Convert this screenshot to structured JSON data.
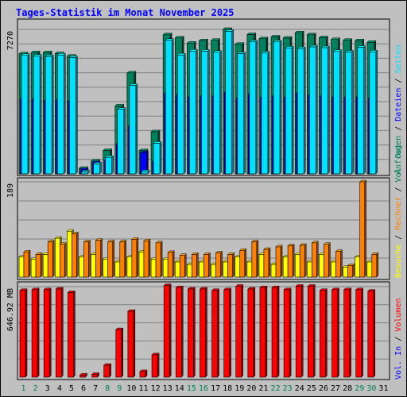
{
  "title": "Tages-Statistik im Monat November 2025",
  "colors": {
    "hits": "#00805c",
    "files": "#0000ff",
    "pages": "#00e0ff",
    "visits": "#ffff00",
    "sites": "#ff8000",
    "volume": "#ff0000",
    "kbin": "#0000ff",
    "kbout": "#00805c",
    "weekend": "#00805c",
    "weekday": "#000000"
  },
  "panels": {
    "top": {
      "max_label": "7270",
      "right_labels": [
        {
          "text": "Anfragen",
          "key": "hits"
        },
        {
          "text": "Dateien",
          "key": "files"
        },
        {
          "text": "Seiten",
          "key": "pages"
        }
      ]
    },
    "middle": {
      "max_label": "189",
      "right_labels": [
        {
          "text": "Besuche",
          "key": "visits"
        },
        {
          "text": "Rechner",
          "key": "sites"
        },
        {
          "text": "Vol. Out",
          "key": "kbout"
        }
      ]
    },
    "bottom": {
      "max_label": "646.92 MB",
      "right_labels": [
        {
          "text": "Vol. In",
          "key": "kbin"
        },
        {
          "text": "Volumen",
          "key": "volume"
        }
      ]
    }
  },
  "chart_data": {
    "type": "bar",
    "title": "Tages-Statistik im Monat November 2025",
    "x": [
      "1",
      "2",
      "3",
      "4",
      "5",
      "6",
      "7",
      "8",
      "9",
      "10",
      "11",
      "12",
      "13",
      "14",
      "15",
      "16",
      "17",
      "18",
      "19",
      "20",
      "21",
      "22",
      "23",
      "24",
      "25",
      "26",
      "27",
      "28",
      "29",
      "30",
      "31"
    ],
    "weekend_days": [
      "1",
      "2",
      "8",
      "9",
      "15",
      "16",
      "22",
      "23",
      "29",
      "30"
    ],
    "ylim_top": [
      0,
      7270
    ],
    "ylim_middle": [
      0,
      189
    ],
    "ylim_bottom_mb": [
      0,
      646.92
    ],
    "series": [
      {
        "name": "Anfragen",
        "values": [
          6040,
          6100,
          6100,
          6050,
          5920,
          280,
          650,
          1180,
          3420,
          5080,
          1170,
          2120,
          7000,
          6840,
          6580,
          6700,
          6720,
          7270,
          6520,
          7010,
          6800,
          6890,
          6830,
          7100,
          7000,
          6850,
          6760,
          6720,
          6700,
          6620,
          null
        ]
      },
      {
        "name": "Dateien",
        "values": [
          3780,
          3750,
          3700,
          3720,
          3650,
          210,
          560,
          660,
          1500,
          2400,
          1060,
          620,
          4050,
          3950,
          3850,
          3900,
          3900,
          4100,
          3800,
          4000,
          3850,
          3900,
          3850,
          4050,
          3950,
          3900,
          3850,
          3850,
          3850,
          3800,
          null
        ]
      },
      {
        "name": "Seiten",
        "values": [
          5960,
          5920,
          5900,
          5980,
          5850,
          100,
          500,
          830,
          3250,
          4450,
          110,
          1540,
          6720,
          5980,
          6180,
          6170,
          6120,
          7170,
          6050,
          6640,
          6080,
          6640,
          6340,
          6300,
          6390,
          6350,
          6160,
          6130,
          6370,
          6140,
          null
        ]
      },
      {
        "name": "Besuche",
        "values": [
          40,
          35,
          45,
          77,
          91,
          40,
          45,
          35,
          30,
          40,
          50,
          35,
          35,
          30,
          25,
          30,
          25,
          30,
          40,
          30,
          45,
          25,
          40,
          45,
          30,
          45,
          30,
          20,
          40,
          30,
          null
        ]
      },
      {
        "name": "Rechner",
        "values": [
          50,
          45,
          70,
          65,
          86,
          70,
          73,
          70,
          70,
          75,
          72,
          68,
          49,
          43,
          45,
          45,
          48,
          45,
          53,
          70,
          55,
          60,
          62,
          63,
          68,
          65,
          51,
          23,
          189,
          45,
          null
        ]
      },
      {
        "name": "Volumen",
        "values": [
          620,
          625,
          625,
          630,
          605,
          15,
          20,
          85,
          340,
          470,
          40,
          160,
          655,
          640,
          630,
          630,
          620,
          625,
          650,
          630,
          640,
          640,
          625,
          650,
          650,
          620,
          625,
          625,
          625,
          615,
          null
        ]
      }
    ]
  }
}
